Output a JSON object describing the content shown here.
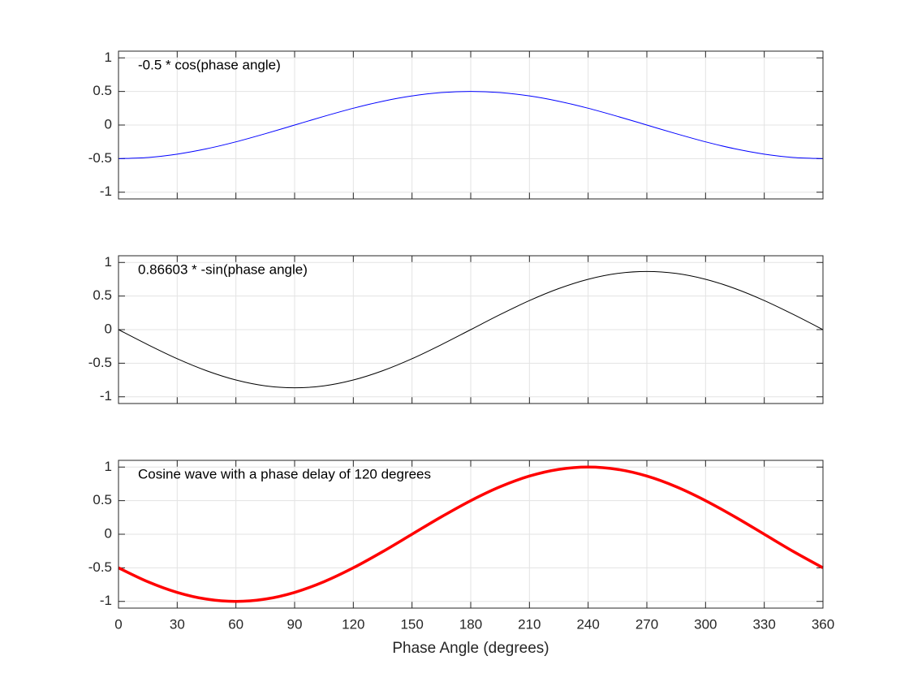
{
  "chart_data": [
    {
      "type": "line",
      "annotation": "-0.5 * cos(phase angle)",
      "x": [
        0,
        15,
        30,
        45,
        60,
        75,
        90,
        105,
        120,
        135,
        150,
        165,
        180,
        195,
        210,
        225,
        240,
        255,
        270,
        285,
        300,
        315,
        330,
        345,
        360
      ],
      "series": [
        {
          "color": "#0000ff",
          "line_width": 1,
          "values": [
            -0.5,
            -0.483,
            -0.433,
            -0.354,
            -0.25,
            -0.129,
            0,
            0.129,
            0.25,
            0.354,
            0.433,
            0.483,
            0.5,
            0.483,
            0.433,
            0.354,
            0.25,
            0.129,
            0,
            -0.129,
            -0.25,
            -0.354,
            -0.433,
            -0.483,
            -0.5
          ]
        }
      ],
      "xlim": [
        0,
        360
      ],
      "xticks": [
        0,
        30,
        60,
        90,
        120,
        150,
        180,
        210,
        240,
        270,
        300,
        330,
        360
      ],
      "ylim": [
        -1.1,
        1.1
      ],
      "yticks": [
        -1,
        -0.5,
        0,
        0.5,
        1
      ],
      "grid": true
    },
    {
      "type": "line",
      "annotation": "0.86603 * -sin(phase angle)",
      "x": [
        0,
        15,
        30,
        45,
        60,
        75,
        90,
        105,
        120,
        135,
        150,
        165,
        180,
        195,
        210,
        225,
        240,
        255,
        270,
        285,
        300,
        315,
        330,
        345,
        360
      ],
      "series": [
        {
          "color": "#000000",
          "line_width": 1,
          "values": [
            0,
            -0.224,
            -0.433,
            -0.612,
            -0.75,
            -0.837,
            -0.866,
            -0.837,
            -0.75,
            -0.612,
            -0.433,
            -0.224,
            0,
            0.224,
            0.433,
            0.612,
            0.75,
            0.837,
            0.866,
            0.837,
            0.75,
            0.612,
            0.433,
            0.224,
            0
          ]
        }
      ],
      "xlim": [
        0,
        360
      ],
      "xticks": [
        0,
        30,
        60,
        90,
        120,
        150,
        180,
        210,
        240,
        270,
        300,
        330,
        360
      ],
      "ylim": [
        -1.1,
        1.1
      ],
      "yticks": [
        -1,
        -0.5,
        0,
        0.5,
        1
      ],
      "grid": true
    },
    {
      "type": "line",
      "annotation": "Cosine wave with a phase delay of 120 degrees",
      "xlabel": "Phase Angle (degrees)",
      "x": [
        0,
        15,
        30,
        45,
        60,
        75,
        90,
        105,
        120,
        135,
        150,
        165,
        180,
        195,
        210,
        225,
        240,
        255,
        270,
        285,
        300,
        315,
        330,
        345,
        360
      ],
      "series": [
        {
          "color": "#ff0000",
          "line_width": 3.5,
          "values": [
            -0.5,
            -0.707,
            -0.866,
            -0.966,
            -1,
            -0.966,
            -0.866,
            -0.707,
            -0.5,
            -0.259,
            0,
            0.259,
            0.5,
            0.707,
            0.866,
            0.966,
            1,
            0.966,
            0.866,
            0.707,
            0.5,
            0.259,
            0,
            -0.259,
            -0.5
          ]
        }
      ],
      "xlim": [
        0,
        360
      ],
      "xticks": [
        0,
        30,
        60,
        90,
        120,
        150,
        180,
        210,
        240,
        270,
        300,
        330,
        360
      ],
      "ylim": [
        -1.1,
        1.1
      ],
      "yticks": [
        -1,
        -0.5,
        0,
        0.5,
        1
      ],
      "grid": true
    }
  ]
}
